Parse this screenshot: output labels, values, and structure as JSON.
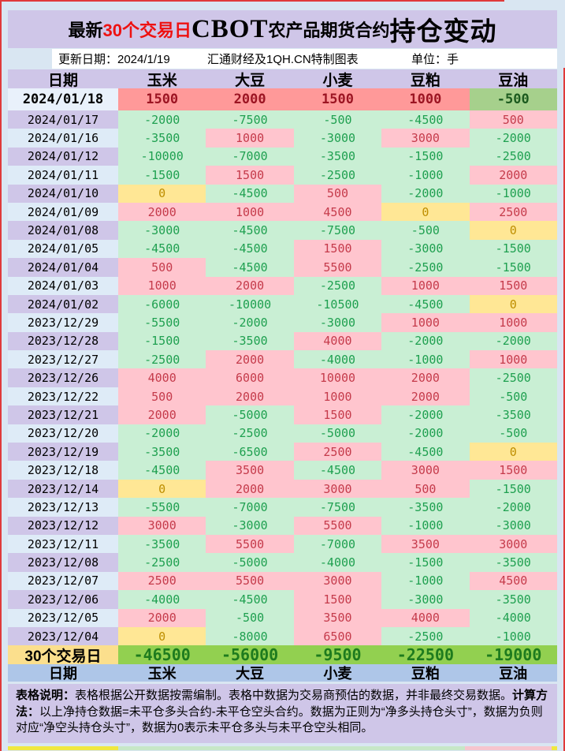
{
  "theme": {
    "page-bg": "#D9E6F2",
    "white": "#FFFFFF",
    "lavender": "#CFC6E8",
    "blue-hdr": "#AEC6E8",
    "red-border": "#E03A3A",
    "title-red": "#EE1111",
    "pos-bg": "#FFC5CE",
    "pos-text": "#C53B4B",
    "neg-bg": "#C9EFD4",
    "neg-text": "#1FA050",
    "zero-bg": "#FFE795",
    "zero-text": "#BE8E00",
    "first-pos-bg": "#FF9999",
    "first-pos-text": "#9C1523",
    "first-neg-bg": "#A6D08C",
    "first-neg-text": "#1C5B1F",
    "date-lav": "#CFC6E8",
    "date-blue": "#DEEBF7",
    "date-first-bg": "#E9F1FB",
    "sum-label-bg": "#FBDF8D",
    "sum-val-bg": "#92D050",
    "sum-val-text": "#1E7B1E",
    "strip-yellow": "#F0E840",
    "strip-green": "#C7E7C7",
    "strip-pink": "#F6C5CE"
  },
  "title": {
    "prefix": "最新",
    "highlight": "30个交易日",
    "brand": "CBOT",
    "middle": "农产品期货合约",
    "suffix": "持仓变动"
  },
  "subheader": {
    "update": "更新日期：2024/1/19",
    "source": "汇通财经及1QH.CN特制图表",
    "unit": "单位：手"
  },
  "notes": [
    {
      "label": "表格说明：",
      "text": "表格根据公开数据按需编制。表格中数据为交易商预估的数据，并非最终交易数据。"
    },
    {
      "label": "计算方法：",
      "text": "以上净持仓数据=未平仓多头合约-未平仓空头合约。数据为正则为“净多头持仓头寸”，数据为负则对应“净空头持仓头寸”，数据为0表示未平仓多头与未平仓空头相同。"
    }
  ],
  "chart_data": {
    "type": "table",
    "title": "最新30个交易日CBOT农产品期货合约持仓变动",
    "updated": "2024/1/19",
    "unit": "手",
    "source": "汇通财经及1QH.CN特制图表",
    "color_coding": {
      "positive": "pink bg / red text",
      "negative": "green bg / green text",
      "zero": "yellow bg / olive text"
    },
    "columns": [
      "日期",
      "玉米",
      "大豆",
      "小麦",
      "豆粕",
      "豆油"
    ],
    "rows": [
      {
        "date": "2024/01/18",
        "values": [
          1500,
          2000,
          1500,
          1000,
          -500
        ]
      },
      {
        "date": "2024/01/17",
        "values": [
          -2000,
          -7500,
          -500,
          -4500,
          500
        ]
      },
      {
        "date": "2024/01/16",
        "values": [
          -3500,
          1000,
          -3000,
          3000,
          -2000
        ]
      },
      {
        "date": "2024/01/12",
        "values": [
          -10000,
          -7000,
          -3500,
          -1500,
          -2500
        ]
      },
      {
        "date": "2024/01/11",
        "values": [
          -1500,
          1500,
          -2500,
          -1000,
          2000
        ]
      },
      {
        "date": "2024/01/10",
        "values": [
          0,
          -4500,
          500,
          -2000,
          -1000
        ]
      },
      {
        "date": "2024/01/09",
        "values": [
          2000,
          1000,
          4500,
          0,
          2500
        ]
      },
      {
        "date": "2024/01/08",
        "values": [
          -3000,
          -4500,
          -7500,
          -500,
          0
        ]
      },
      {
        "date": "2024/01/05",
        "values": [
          -4500,
          -4500,
          1500,
          -3000,
          -1500
        ]
      },
      {
        "date": "2024/01/04",
        "values": [
          500,
          -4500,
          5500,
          -2500,
          -1500
        ]
      },
      {
        "date": "2024/01/03",
        "values": [
          1000,
          2000,
          -2500,
          1000,
          1500
        ]
      },
      {
        "date": "2024/01/02",
        "values": [
          -6000,
          -10000,
          -10500,
          -4500,
          0
        ]
      },
      {
        "date": "2023/12/29",
        "values": [
          -5500,
          -2000,
          -3000,
          1000,
          1000
        ]
      },
      {
        "date": "2023/12/28",
        "values": [
          -1500,
          -3500,
          4000,
          -2000,
          -2000
        ]
      },
      {
        "date": "2023/12/27",
        "values": [
          -2500,
          2000,
          -4000,
          -1000,
          1000
        ]
      },
      {
        "date": "2023/12/26",
        "values": [
          4000,
          6000,
          10000,
          2000,
          -2500
        ]
      },
      {
        "date": "2023/12/22",
        "values": [
          500,
          2000,
          1000,
          2000,
          -500
        ]
      },
      {
        "date": "2023/12/21",
        "values": [
          2000,
          -5000,
          1500,
          -2000,
          -3500
        ]
      },
      {
        "date": "2023/12/20",
        "values": [
          -2000,
          -2500,
          -5000,
          -2000,
          -500
        ]
      },
      {
        "date": "2023/12/19",
        "values": [
          -3500,
          -6500,
          2500,
          -4500,
          0
        ]
      },
      {
        "date": "2023/12/18",
        "values": [
          -4500,
          3500,
          -4500,
          3000,
          1500
        ]
      },
      {
        "date": "2023/12/14",
        "values": [
          0,
          2000,
          3000,
          500,
          -1500
        ]
      },
      {
        "date": "2023/12/13",
        "values": [
          -5500,
          -7000,
          -7500,
          -3500,
          -2000
        ]
      },
      {
        "date": "2023/12/12",
        "values": [
          3000,
          -3000,
          5500,
          -1000,
          -3000
        ]
      },
      {
        "date": "2023/12/11",
        "values": [
          -3500,
          5500,
          -7000,
          3500,
          3000
        ]
      },
      {
        "date": "2023/12/08",
        "values": [
          -2500,
          -5000,
          -4000,
          -1500,
          -3500
        ]
      },
      {
        "date": "2023/12/07",
        "values": [
          2500,
          5500,
          3000,
          -1000,
          4500
        ]
      },
      {
        "date": "2023/12/06",
        "values": [
          -4000,
          -4500,
          1500,
          -3000,
          -3500
        ]
      },
      {
        "date": "2023/12/05",
        "values": [
          2000,
          -500,
          3500,
          4000,
          -4000
        ]
      },
      {
        "date": "2023/12/04",
        "values": [
          0,
          -8000,
          6500,
          -2500,
          -1000
        ]
      }
    ],
    "totals": {
      "label": "30个交易日",
      "values": [
        -46500,
        -56000,
        -9500,
        -22500,
        -19000
      ]
    }
  }
}
